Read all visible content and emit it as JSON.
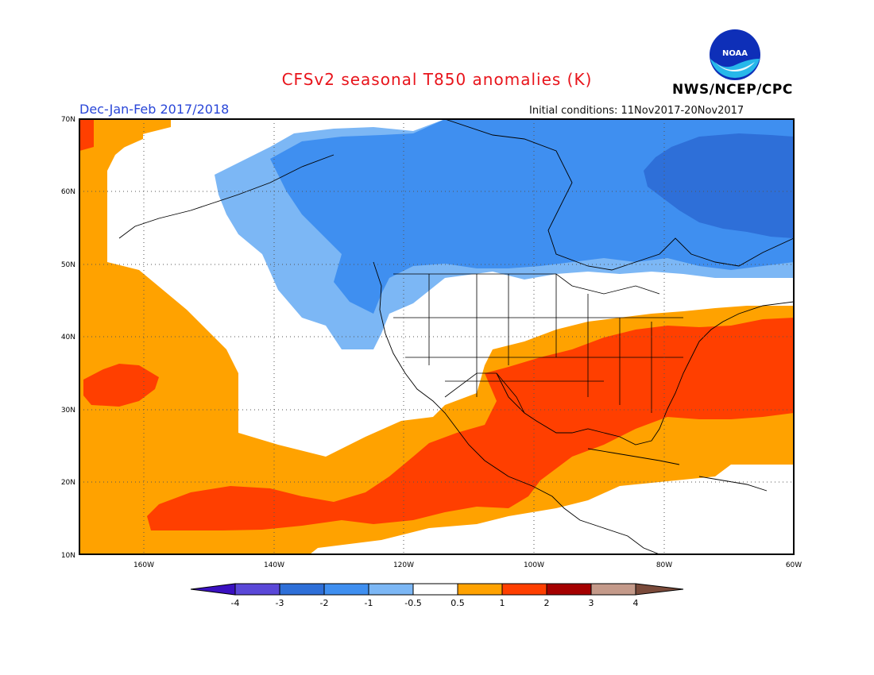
{
  "title": "CFSv2 seasonal T850 anomalies (K)",
  "season": "Dec-Jan-Feb 2017/2018",
  "initial_conditions": "Initial conditions: 11Nov2017-20Nov2017",
  "agency": "NWS/NCEP/CPC",
  "logo_text": "NOAA",
  "lat_labels": [
    "70N",
    "60N",
    "50N",
    "40N",
    "30N",
    "20N",
    "10N"
  ],
  "lon_labels": [
    "160W",
    "140W",
    "120W",
    "100W",
    "80W",
    "60W"
  ],
  "colorbar": {
    "labels": [
      "-4",
      "-3",
      "-2",
      "-1",
      "-0.5",
      "0.5",
      "1",
      "2",
      "3",
      "4"
    ],
    "colors": [
      "#3a10c0",
      "#5a48d8",
      "#2e6fd8",
      "#3f8ff0",
      "#7cb7f5",
      "#ffffff",
      "#ffa200",
      "#ff3f00",
      "#a50000",
      "#c49a8a",
      "#7a4a3a"
    ]
  },
  "map_colors": {
    "orange": "#ffa200",
    "red": "#ff3f00",
    "light_blue": "#7cb7f5",
    "blue": "#3f8ff0",
    "dark_blue": "#2e6fd8"
  }
}
